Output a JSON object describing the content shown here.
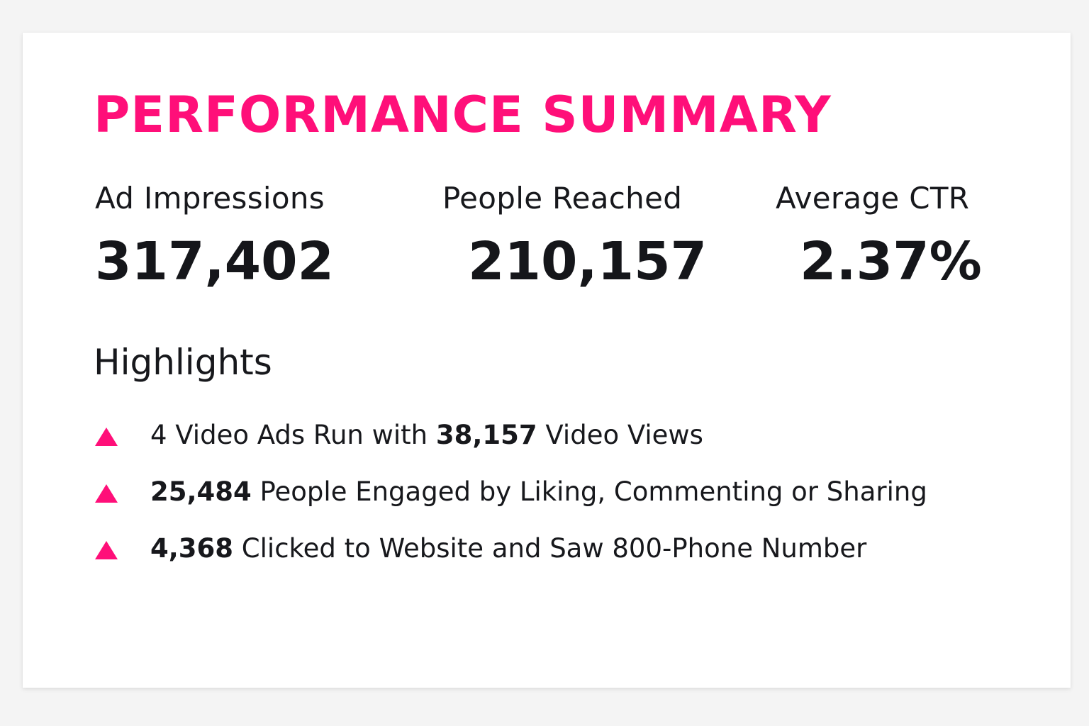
{
  "title": "PERFORMANCE SUMMARY",
  "accent_color": "#ff0f79",
  "metrics": [
    {
      "label": "Ad Impressions",
      "value": "317,402"
    },
    {
      "label": "People Reached",
      "value": "210,157"
    },
    {
      "label": "Average CTR",
      "value": "2.37%"
    }
  ],
  "highlights": {
    "title": "Highlights",
    "bullet_icon": "triangle-up-icon",
    "items": [
      {
        "pre": "4 Video Ads Run with ",
        "bold": "38,157",
        "post": " Video Views"
      },
      {
        "pre": "",
        "bold": "25,484",
        "post": " People Engaged by Liking, Commenting or Sharing"
      },
      {
        "pre": "",
        "bold": "4,368",
        "post": " Clicked to Website and Saw 800-Phone Number"
      }
    ]
  }
}
